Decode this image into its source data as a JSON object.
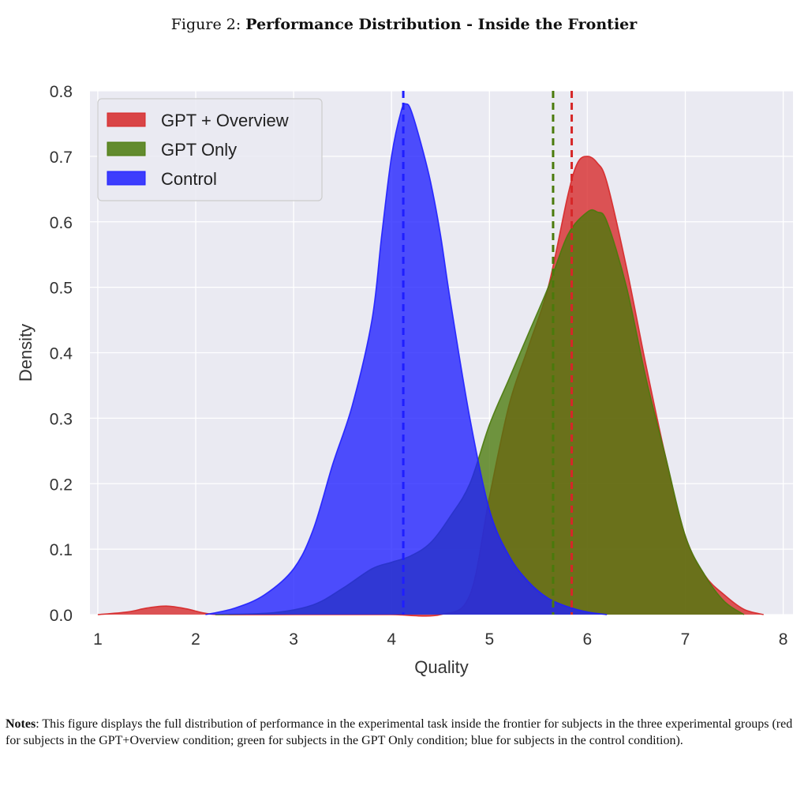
{
  "figure": {
    "prefix": "Figure 2:",
    "title": "Performance Distribution - Inside the Frontier"
  },
  "notes": {
    "label": "Notes",
    "text": ": This figure displays the full distribution of performance in the experimental task inside the frontier for subjects in the three experimental groups (red for subjects in the GPT+Overview condition; green for subjects in the GPT Only condition; blue for subjects in the control condition)."
  },
  "chart_data": {
    "type": "area",
    "xlabel": "Quality",
    "ylabel": "Density",
    "xlim": [
      0.92,
      8.1
    ],
    "ylim": [
      0,
      0.8
    ],
    "xticks": [
      1,
      2,
      3,
      4,
      5,
      6,
      7,
      8
    ],
    "yticks": [
      "0.0",
      "0.1",
      "0.2",
      "0.3",
      "0.4",
      "0.5",
      "0.6",
      "0.7",
      "0.8"
    ],
    "grid": true,
    "legend_position": "top-left",
    "series": [
      {
        "name": "GPT + Overview",
        "color": "#d62728",
        "mean": 5.84,
        "x": [
          1.0,
          1.3,
          1.5,
          1.7,
          1.9,
          2.1,
          2.3,
          3.0,
          3.5,
          4.0,
          4.5,
          4.8,
          5.0,
          5.2,
          5.4,
          5.6,
          5.8,
          5.9,
          6.0,
          6.1,
          6.2,
          6.4,
          6.6,
          6.8,
          7.0,
          7.2,
          7.4,
          7.6,
          7.8
        ],
        "values": [
          0.0,
          0.004,
          0.01,
          0.013,
          0.009,
          0.002,
          0.0,
          0.0,
          0.0,
          0.0,
          0.0,
          0.03,
          0.18,
          0.32,
          0.41,
          0.5,
          0.64,
          0.69,
          0.7,
          0.69,
          0.66,
          0.53,
          0.38,
          0.24,
          0.12,
          0.06,
          0.03,
          0.008,
          0.0
        ]
      },
      {
        "name": "GPT Only",
        "color": "#4a7a0c",
        "mean": 5.65,
        "x": [
          2.2,
          2.8,
          3.2,
          3.5,
          3.8,
          4.0,
          4.2,
          4.4,
          4.6,
          4.8,
          5.0,
          5.2,
          5.4,
          5.6,
          5.8,
          6.0,
          6.1,
          6.2,
          6.4,
          6.6,
          6.8,
          7.0,
          7.2,
          7.4,
          7.6
        ],
        "values": [
          0.0,
          0.003,
          0.015,
          0.04,
          0.07,
          0.08,
          0.09,
          0.11,
          0.15,
          0.2,
          0.29,
          0.36,
          0.43,
          0.5,
          0.58,
          0.615,
          0.615,
          0.6,
          0.5,
          0.36,
          0.24,
          0.12,
          0.06,
          0.02,
          0.0
        ]
      },
      {
        "name": "Control",
        "color": "#1f1fff",
        "mean": 4.12,
        "x": [
          2.1,
          2.4,
          2.7,
          3.0,
          3.2,
          3.4,
          3.6,
          3.8,
          3.9,
          4.0,
          4.1,
          4.15,
          4.2,
          4.3,
          4.4,
          4.5,
          4.6,
          4.8,
          5.0,
          5.2,
          5.4,
          5.6,
          5.8,
          6.0,
          6.2
        ],
        "values": [
          0.0,
          0.01,
          0.03,
          0.07,
          0.13,
          0.23,
          0.32,
          0.45,
          0.58,
          0.7,
          0.77,
          0.78,
          0.77,
          0.72,
          0.66,
          0.58,
          0.48,
          0.3,
          0.16,
          0.09,
          0.05,
          0.025,
          0.012,
          0.004,
          0.0
        ]
      }
    ]
  }
}
